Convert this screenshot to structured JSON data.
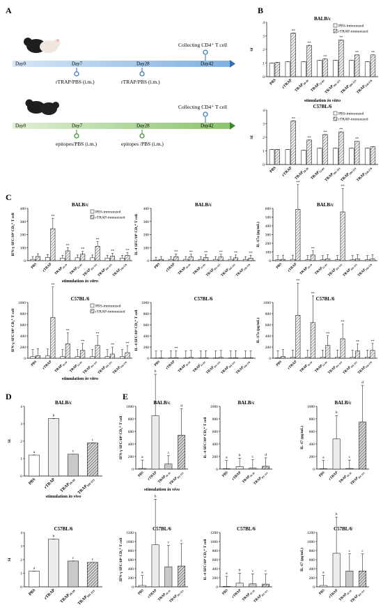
{
  "panel_labels": {
    "A": "A",
    "B": "B",
    "C": "C",
    "D": "D",
    "E": "E"
  },
  "schedule_1": {
    "days": [
      "Day0",
      "Day7",
      "Day28",
      "Day42"
    ],
    "top_label": "Collecting CD4⁺ T cell",
    "below_labels": [
      "rTRAP/PBS (i.m.)",
      "rTRAP/PBS (i.m.)"
    ],
    "color": "#2e6fb5"
  },
  "schedule_2": {
    "days": [
      "Day0",
      "Day7",
      "Day28",
      "Day42"
    ],
    "top_label": "Collecting CD4⁺ T cell",
    "below_labels": [
      "epitopes/PBS (i.m.)",
      "epitopes /PBS (i.m.)"
    ],
    "color": "#3b8a2a"
  },
  "legend_labels": {
    "pbs": "PBS-immunized",
    "rtrap": "rTRAP-immunized"
  },
  "chart_data": [
    {
      "id": "B1",
      "type": "bar",
      "title": "BALB/c",
      "ylabel": "SI",
      "xlabel": "stimulation in vitro",
      "ylim": [
        0,
        4
      ],
      "yticks": [
        "0",
        "1",
        "2",
        "3",
        "4"
      ],
      "categories": [
        "PBS",
        "rTRAP",
        "TRAP19-39",
        "TRAP52-83",
        "TRAP101-113",
        "TRAP104-123",
        "TRAP158-178"
      ],
      "series": [
        {
          "name": "PBS-immunized",
          "values": [
            1.0,
            1.1,
            1.1,
            1.2,
            1.2,
            1.2,
            1.1
          ]
        },
        {
          "name": "rTRAP-immunized",
          "values": [
            1.05,
            3.2,
            2.3,
            1.3,
            2.7,
            1.6,
            1.6
          ]
        }
      ],
      "significance": [
        "",
        "**",
        "**",
        "**",
        "**",
        "**",
        "**"
      ]
    },
    {
      "id": "B2",
      "type": "bar",
      "title": "C57BL/6",
      "ylabel": "SI",
      "xlabel": "",
      "ylim": [
        0,
        4
      ],
      "yticks": [
        "0",
        "1",
        "2",
        "3",
        "4"
      ],
      "categories": [
        "PBS",
        "rTRAP",
        "TRAP19-39",
        "TRAP52-83",
        "TRAP101-113",
        "TRAP104-123",
        "TRAP158-178"
      ],
      "series": [
        {
          "name": "PBS-immunized",
          "values": [
            1.1,
            1.1,
            1.05,
            1.2,
            1.2,
            1.2,
            1.2
          ]
        },
        {
          "name": "rTRAP-immunized",
          "values": [
            1.1,
            3.2,
            1.8,
            2.2,
            2.4,
            1.7,
            1.3
          ]
        }
      ],
      "significance": [
        "",
        "**",
        "**",
        "**",
        "**",
        "**",
        ""
      ]
    },
    {
      "id": "C1",
      "type": "bar",
      "title": "BALB/c",
      "ylabel": "IFN-γ SFC/10⁶ CD₄⁺ T cell",
      "xlabel": "stimulation in vitro",
      "ylim": [
        0,
        400
      ],
      "yticks": [
        "0",
        "100",
        "200",
        "300",
        "400"
      ],
      "categories": [
        "PBS",
        "rTRAP",
        "TRAP19-39",
        "TRAP52-83",
        "TRAP101-113",
        "TRAP104-123",
        "TRAP158-178"
      ],
      "series": [
        {
          "name": "PBS-immunized",
          "values": [
            10,
            25,
            20,
            22,
            22,
            20,
            20
          ]
        },
        {
          "name": "rTRAP-immunized",
          "values": [
            32,
            245,
            75,
            50,
            110,
            35,
            40
          ]
        }
      ],
      "significance": [
        "",
        "**",
        "**",
        "**",
        "**",
        "**",
        "**"
      ]
    },
    {
      "id": "C2",
      "type": "bar",
      "title": "BALB/c",
      "ylabel": "IL-4 SFC/10⁶ CD₄⁺ T cell",
      "xlabel": "",
      "ylim": [
        0,
        400
      ],
      "yticks": [
        "0",
        "100",
        "200",
        "300",
        "400"
      ],
      "categories": [
        "PBS",
        "rTRAP",
        "TRAP19-39",
        "TRAP52-83",
        "TRAP101-113",
        "TRAP104-123",
        "TRAP158-178"
      ],
      "series": [
        {
          "name": "PBS-immunized",
          "values": [
            5,
            10,
            10,
            10,
            10,
            10,
            10
          ]
        },
        {
          "name": "rTRAP-immunized",
          "values": [
            10,
            30,
            28,
            25,
            28,
            22,
            20
          ]
        }
      ],
      "significance": [
        "",
        "**",
        "**",
        "**",
        "**",
        "**",
        "**"
      ]
    },
    {
      "id": "C3",
      "type": "bar",
      "title": "BALB/c",
      "ylabel": "IL-17a (pg/mL)",
      "xlabel": "",
      "ylim": [
        0,
        600
      ],
      "yticks": [
        "0",
        "100",
        "200",
        "300",
        "400",
        "500",
        "600"
      ],
      "categories": [
        "PBS",
        "rTRAP",
        "TRAP19-39",
        "TRAP52-83",
        "TRAP101-113",
        "TRAP104-123",
        "TRAP158-178"
      ],
      "series": [
        {
          "name": "PBS-immunized",
          "values": [
            10,
            15,
            10,
            10,
            10,
            10,
            10
          ]
        },
        {
          "name": "rTRAP-immunized",
          "values": [
            15,
            590,
            65,
            20,
            560,
            20,
            20
          ]
        }
      ],
      "significance": [
        "",
        "**",
        "**",
        "",
        "**",
        "",
        ""
      ]
    },
    {
      "id": "C4",
      "type": "bar",
      "title": "C57BL/6",
      "ylabel": "IFN-γ SFC/10⁶ CD₄⁺ T cell",
      "xlabel": "stimulation in vitro",
      "ylim": [
        0,
        1000
      ],
      "yticks": [
        "0",
        "200",
        "400",
        "600",
        "800",
        "1000"
      ],
      "categories": [
        "PBS",
        "rTRAP",
        "TRAP19-39",
        "TRAP52-83",
        "TRAP101-113",
        "TRAP104-123",
        "TRAP158-178"
      ],
      "series": [
        {
          "name": "PBS-immunized",
          "values": [
            30,
            40,
            30,
            30,
            30,
            30,
            30
          ]
        },
        {
          "name": "rTRAP-immunized",
          "values": [
            45,
            730,
            260,
            140,
            230,
            75,
            100
          ]
        }
      ],
      "significance": [
        "",
        "**",
        "**",
        "**",
        "**",
        "**",
        "**"
      ]
    },
    {
      "id": "C5",
      "type": "bar",
      "title": "C57BL/6",
      "ylabel": "IL-4 SFC/10⁶ CD₄⁺ T cell",
      "xlabel": "",
      "ylim": [
        0,
        1000
      ],
      "yticks": [
        "0",
        "200",
        "400",
        "600",
        "800",
        "1000"
      ],
      "categories": [
        "PBS",
        "rTRAP",
        "TRAP19-39",
        "TRAP52-83",
        "TRAP101-113",
        "TRAP104-123",
        "TRAP158-178"
      ],
      "series": [
        {
          "name": "PBS-immunized",
          "values": [
            3,
            5,
            5,
            5,
            5,
            5,
            5
          ]
        },
        {
          "name": "rTRAP-immunized",
          "values": [
            5,
            10,
            15,
            10,
            15,
            10,
            10
          ]
        }
      ],
      "significance": [
        "",
        "**",
        "",
        "",
        "",
        "",
        ""
      ]
    },
    {
      "id": "C6",
      "type": "bar",
      "title": "C57BL/6",
      "ylabel": "IL-17a (pg/mL)",
      "xlabel": "",
      "ylim": [
        0,
        1000
      ],
      "yticks": [
        "0",
        "200",
        "400",
        "600",
        "800",
        "1000"
      ],
      "categories": [
        "PBS",
        "rTRAP",
        "TRAP19-39",
        "TRAP52-83",
        "TRAP101-113",
        "TRAP104-123",
        "TRAP158-178"
      ],
      "series": [
        {
          "name": "PBS-immunized",
          "values": [
            10,
            20,
            20,
            20,
            20,
            20,
            20
          ]
        },
        {
          "name": "rTRAP-immunized",
          "values": [
            30,
            770,
            640,
            230,
            350,
            130,
            140
          ]
        }
      ],
      "significance": [
        "",
        "**",
        "**",
        "**",
        "**",
        "**",
        "**"
      ]
    },
    {
      "id": "D1",
      "type": "bar",
      "title": "BALB/c",
      "ylabel": "SI",
      "xlabel": "stimulation in vivo",
      "ylim": [
        0,
        4
      ],
      "yticks": [
        "0",
        "1",
        "2",
        "3",
        "4"
      ],
      "categories": [
        "PBS",
        "rTRAP",
        "TRAP19-39",
        "TRAP101-113"
      ],
      "series": [
        {
          "name": "",
          "values": [
            1.2,
            3.3,
            1.25,
            1.9
          ]
        }
      ],
      "letters": [
        "a",
        "b",
        "c",
        "c"
      ]
    },
    {
      "id": "D2",
      "type": "bar",
      "title": "C57BL/6",
      "ylabel": "SI",
      "xlabel": "",
      "ylim": [
        0,
        4
      ],
      "yticks": [
        "0",
        "1",
        "2",
        "3",
        "4"
      ],
      "categories": [
        "PBS",
        "rTRAP",
        "TRAP19-39",
        "TRAP101-113"
      ],
      "series": [
        {
          "name": "",
          "values": [
            1.15,
            3.5,
            1.9,
            1.8
          ]
        }
      ],
      "letters": [
        "a",
        "b",
        "c",
        "c"
      ]
    },
    {
      "id": "E1",
      "type": "bar",
      "title": "BALB/c",
      "ylabel": "IFN-γ SFC/10⁶ CD₄⁺ T cell",
      "xlabel": "stimulation in vivo",
      "ylim": [
        0,
        1000
      ],
      "yticks": [
        "0",
        "200",
        "400",
        "600",
        "800",
        "1000"
      ],
      "categories": [
        "PBS",
        "rTRAP",
        "TRAP19-39",
        "TRAP101-113"
      ],
      "series": [
        {
          "name": "",
          "values": [
            10,
            850,
            80,
            540
          ]
        }
      ],
      "letters": [
        "a",
        "b",
        "c",
        "d"
      ]
    },
    {
      "id": "E2",
      "type": "bar",
      "title": "BALB/c",
      "ylabel": "IL-4 SFC/10⁶ CD₄⁺ T cell",
      "xlabel": "",
      "ylim": [
        0,
        1000
      ],
      "yticks": [
        "0",
        "200",
        "400",
        "600",
        "800",
        "1000"
      ],
      "categories": [
        "PBS",
        "rTRAP",
        "TRAP19-39",
        "TRAP101-113"
      ],
      "series": [
        {
          "name": "",
          "values": [
            5,
            40,
            15,
            45
          ]
        }
      ],
      "letters": [
        "a",
        "b",
        "c",
        "d"
      ]
    },
    {
      "id": "E3",
      "type": "bar",
      "title": "BALB/c",
      "ylabel": "IL-17 (pg/mL)",
      "xlabel": "",
      "ylim": [
        0,
        1000
      ],
      "yticks": [
        "0",
        "200",
        "400",
        "600",
        "800",
        "1000"
      ],
      "categories": [
        "PBS",
        "rTRAP",
        "TRAP19-39",
        "TRAP101-113"
      ],
      "series": [
        {
          "name": "",
          "values": [
            5,
            480,
            10,
            750
          ]
        }
      ],
      "letters": [
        "a",
        "b",
        "c",
        "d"
      ]
    },
    {
      "id": "E4",
      "type": "bar",
      "title": "C57BL/6",
      "ylabel": "IFN-γ SFC/10⁶ CD₄⁺ T cell",
      "xlabel": "",
      "ylim": [
        0,
        1200
      ],
      "yticks": [
        "0",
        "200",
        "400",
        "600",
        "800",
        "1000",
        "1200"
      ],
      "categories": [
        "PBS",
        "rTRAP",
        "TRAP19-39",
        "TRAP101-113"
      ],
      "series": [
        {
          "name": "",
          "values": [
            30,
            930,
            440,
            460
          ]
        }
      ],
      "letters": [
        "a",
        "b",
        "c",
        "c"
      ]
    },
    {
      "id": "E5",
      "type": "bar",
      "title": "C57BL/6",
      "ylabel": "IL-4 SFC/10⁶ CD₄⁺ T cell",
      "xlabel": "",
      "ylim": [
        0,
        1200
      ],
      "yticks": [
        "0",
        "200",
        "400",
        "600",
        "800",
        "1000",
        "1200"
      ],
      "categories": [
        "PBS",
        "rTRAP",
        "TRAP19-39",
        "TRAP101-113"
      ],
      "series": [
        {
          "name": "",
          "values": [
            10,
            80,
            65,
            60
          ]
        }
      ],
      "letters": [
        "a",
        "b",
        "c",
        "c"
      ]
    },
    {
      "id": "E6",
      "type": "bar",
      "title": "C57BL/6",
      "ylabel": "IL-17 (pg/mL)",
      "xlabel": "",
      "ylim": [
        0,
        1200
      ],
      "yticks": [
        "0",
        "200",
        "400",
        "600",
        "800",
        "1000",
        "1200"
      ],
      "categories": [
        "PBS",
        "rTRAP",
        "TRAP19-39",
        "TRAP101-113"
      ],
      "series": [
        {
          "name": "",
          "values": [
            30,
            740,
            350,
            350
          ]
        }
      ],
      "letters": [
        "a",
        "b",
        "c",
        "c"
      ]
    }
  ]
}
